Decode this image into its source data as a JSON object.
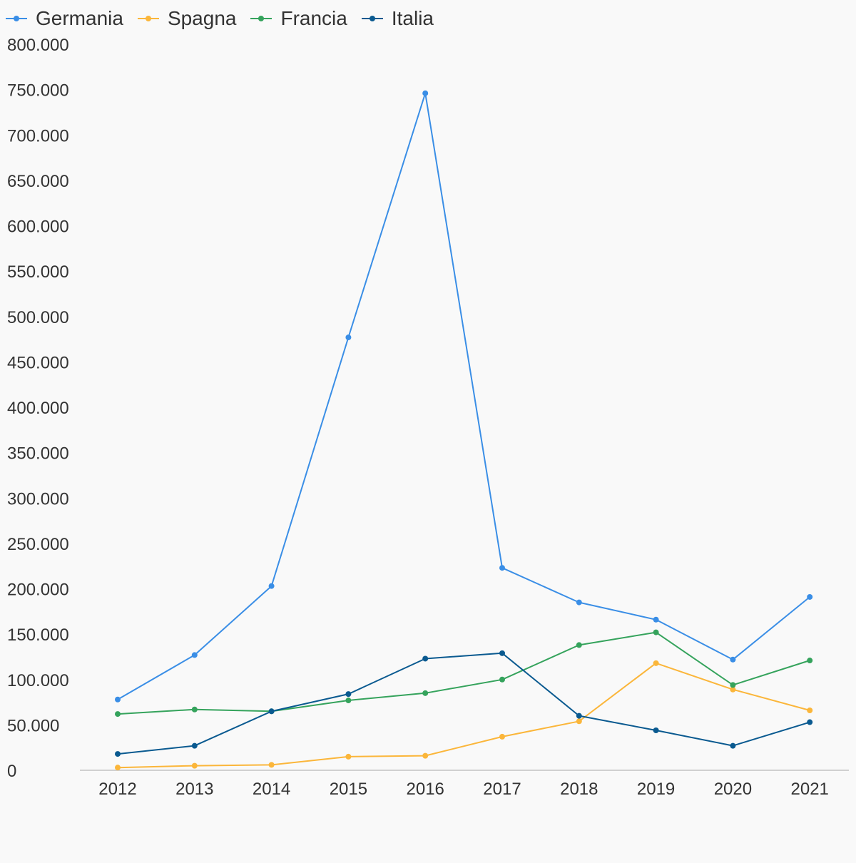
{
  "chart_data": {
    "type": "line",
    "title": "",
    "xlabel": "",
    "ylabel": "",
    "categories": [
      "2012",
      "2013",
      "2014",
      "2015",
      "2016",
      "2017",
      "2018",
      "2019",
      "2020",
      "2021"
    ],
    "ylim": [
      0,
      800000
    ],
    "yticks": [
      0,
      50000,
      100000,
      150000,
      200000,
      250000,
      300000,
      350000,
      400000,
      450000,
      500000,
      550000,
      600000,
      650000,
      700000,
      750000,
      800000
    ],
    "ytick_labels": [
      "0",
      "50.000",
      "100.000",
      "150.000",
      "200.000",
      "250.000",
      "300.000",
      "350.000",
      "400.000",
      "450.000",
      "500.000",
      "550.000",
      "600.000",
      "650.000",
      "700.000",
      "750.000",
      "800.000"
    ],
    "grid": false,
    "legend_position": "top-left",
    "series": [
      {
        "name": "Germania",
        "color": "#3a8ee6",
        "values": [
          78000,
          127000,
          203000,
          477000,
          746000,
          223000,
          185000,
          166000,
          122000,
          191000
        ]
      },
      {
        "name": "Spagna",
        "color": "#fbb63a",
        "values": [
          3000,
          5000,
          6000,
          15000,
          16000,
          37000,
          54000,
          118000,
          89000,
          66000
        ]
      },
      {
        "name": "Francia",
        "color": "#35a35c",
        "values": [
          62000,
          67000,
          65000,
          77000,
          85000,
          100000,
          138000,
          152000,
          94000,
          121000
        ]
      },
      {
        "name": "Italia",
        "color": "#0a5a90",
        "values": [
          18000,
          27000,
          65000,
          84000,
          123000,
          129000,
          60000,
          44000,
          27000,
          53000
        ]
      }
    ]
  }
}
